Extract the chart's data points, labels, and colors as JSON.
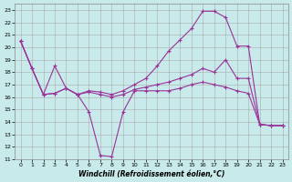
{
  "xlabel": "Windchill (Refroidissement éolien,°C)",
  "xlim": [
    -0.5,
    23.5
  ],
  "ylim": [
    11,
    23.5
  ],
  "yticks": [
    11,
    12,
    13,
    14,
    15,
    16,
    17,
    18,
    19,
    20,
    21,
    22,
    23
  ],
  "xticks": [
    0,
    1,
    2,
    3,
    4,
    5,
    6,
    7,
    8,
    9,
    10,
    11,
    12,
    13,
    14,
    15,
    16,
    17,
    18,
    19,
    20,
    21,
    22,
    23
  ],
  "bg_color": "#c8eaea",
  "grid_color": "#aaaaaa",
  "line_color": "#993399",
  "line1_x": [
    0,
    1,
    2,
    3,
    4,
    5,
    6,
    7,
    8,
    9,
    10,
    11,
    12,
    13,
    14,
    15,
    16,
    17,
    18,
    19,
    20,
    21,
    22,
    23
  ],
  "line1_y": [
    20.5,
    18.3,
    16.2,
    18.5,
    16.7,
    16.2,
    14.8,
    11.3,
    11.2,
    14.8,
    16.5,
    16.5,
    16.5,
    16.5,
    16.7,
    17.0,
    17.2,
    17.0,
    16.8,
    16.5,
    16.3,
    13.8,
    13.7,
    13.7
  ],
  "line2_x": [
    0,
    1,
    2,
    3,
    4,
    5,
    6,
    7,
    8,
    9,
    10,
    11,
    12,
    13,
    14,
    15,
    16,
    17,
    18,
    19,
    20,
    21,
    22,
    23
  ],
  "line2_y": [
    20.5,
    18.3,
    16.2,
    16.3,
    16.7,
    16.2,
    16.5,
    16.4,
    16.2,
    16.5,
    17.0,
    17.5,
    18.5,
    19.7,
    20.6,
    21.5,
    22.9,
    22.9,
    22.4,
    20.1,
    20.1,
    13.8,
    13.7,
    13.7
  ],
  "line3_x": [
    0,
    1,
    2,
    3,
    4,
    5,
    6,
    7,
    8,
    9,
    10,
    11,
    12,
    13,
    14,
    15,
    16,
    17,
    18,
    19,
    20,
    21,
    22,
    23
  ],
  "line3_y": [
    20.5,
    18.3,
    16.2,
    16.3,
    16.7,
    16.2,
    16.4,
    16.2,
    16.0,
    16.2,
    16.6,
    16.8,
    17.0,
    17.2,
    17.5,
    17.8,
    18.3,
    18.0,
    19.0,
    17.5,
    17.5,
    13.8,
    13.7,
    13.7
  ]
}
